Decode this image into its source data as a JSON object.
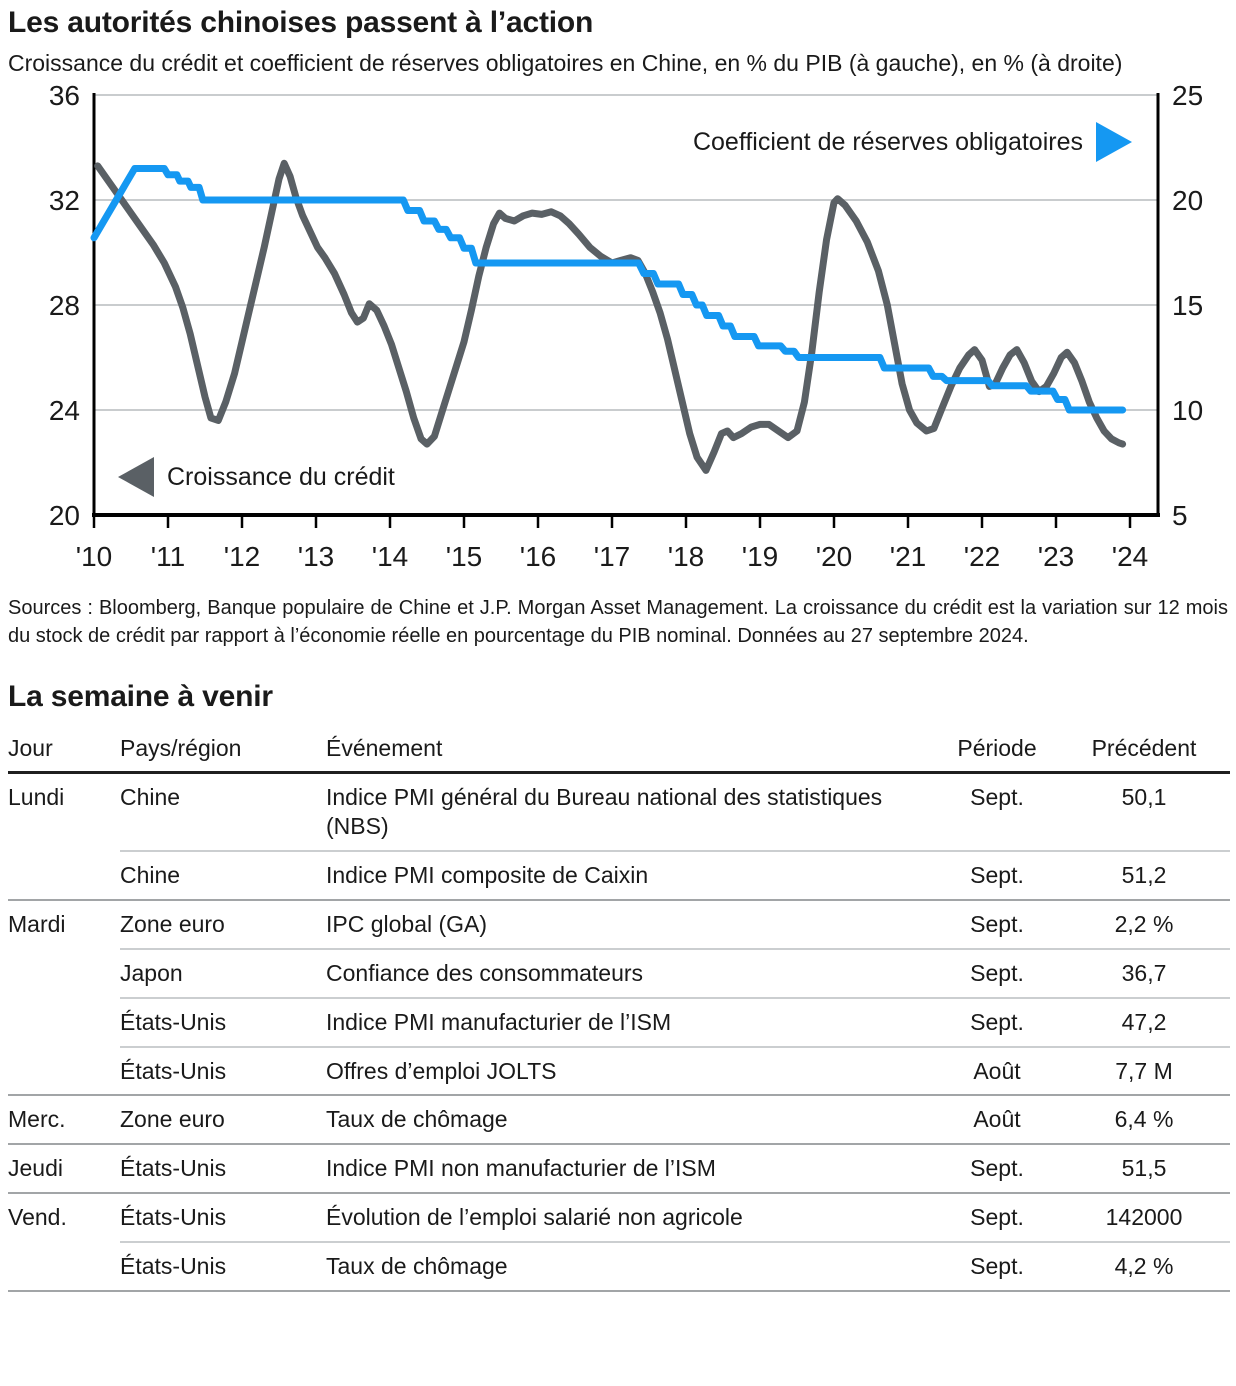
{
  "page": {
    "title": "Les autorités chinoises passent à l’action",
    "subtitle": "Croissance du crédit et coefficient de réserves obligatoires en Chine, en % du PIB (à gauche), en % (à droite)"
  },
  "chart_data": {
    "type": "line",
    "title": "Les autorités chinoises passent à l’action",
    "x_axis": {
      "tick_labels": [
        "'10",
        "'11",
        "'12",
        "'13",
        "'14",
        "'15",
        "'16",
        "'17",
        "'18",
        "'19",
        "'20",
        "'21",
        "'22",
        "'23",
        "'24"
      ],
      "start_year": 2010,
      "tick_step_years": 1
    },
    "left_axis": {
      "label": "% du PIB",
      "min": 20,
      "max": 36,
      "ticks": [
        36,
        32,
        28,
        24,
        20
      ]
    },
    "right_axis": {
      "label": "%",
      "min": 5,
      "max": 25,
      "ticks": [
        25,
        20,
        15,
        10,
        5
      ]
    },
    "grid": true,
    "legend_position": "inside",
    "series": [
      {
        "name": "Croissance du crédit",
        "axis": "left",
        "color": "#5A6065",
        "points": [
          [
            2010.05,
            33.3
          ],
          [
            2010.2,
            32.7
          ],
          [
            2010.35,
            32.1
          ],
          [
            2010.5,
            31.5
          ],
          [
            2010.65,
            30.9
          ],
          [
            2010.8,
            30.3
          ],
          [
            2010.95,
            29.6
          ],
          [
            2011.1,
            28.7
          ],
          [
            2011.2,
            27.9
          ],
          [
            2011.3,
            26.9
          ],
          [
            2011.4,
            25.7
          ],
          [
            2011.5,
            24.5
          ],
          [
            2011.58,
            23.7
          ],
          [
            2011.68,
            23.6
          ],
          [
            2011.78,
            24.3
          ],
          [
            2011.9,
            25.4
          ],
          [
            2012.0,
            26.6
          ],
          [
            2012.1,
            27.8
          ],
          [
            2012.2,
            29.0
          ],
          [
            2012.3,
            30.2
          ],
          [
            2012.4,
            31.5
          ],
          [
            2012.5,
            32.8
          ],
          [
            2012.57,
            33.4
          ],
          [
            2012.65,
            32.9
          ],
          [
            2012.73,
            32.1
          ],
          [
            2012.82,
            31.4
          ],
          [
            2012.92,
            30.8
          ],
          [
            2013.02,
            30.2
          ],
          [
            2013.12,
            29.8
          ],
          [
            2013.25,
            29.2
          ],
          [
            2013.38,
            28.4
          ],
          [
            2013.48,
            27.7
          ],
          [
            2013.56,
            27.35
          ],
          [
            2013.64,
            27.5
          ],
          [
            2013.72,
            28.05
          ],
          [
            2013.82,
            27.8
          ],
          [
            2013.92,
            27.2
          ],
          [
            2014.02,
            26.5
          ],
          [
            2014.12,
            25.6
          ],
          [
            2014.22,
            24.7
          ],
          [
            2014.32,
            23.7
          ],
          [
            2014.42,
            22.9
          ],
          [
            2014.5,
            22.7
          ],
          [
            2014.6,
            23.0
          ],
          [
            2014.7,
            23.9
          ],
          [
            2014.8,
            24.8
          ],
          [
            2014.9,
            25.7
          ],
          [
            2015.0,
            26.6
          ],
          [
            2015.1,
            27.8
          ],
          [
            2015.2,
            29.1
          ],
          [
            2015.3,
            30.2
          ],
          [
            2015.4,
            31.1
          ],
          [
            2015.48,
            31.5
          ],
          [
            2015.56,
            31.3
          ],
          [
            2015.68,
            31.2
          ],
          [
            2015.8,
            31.4
          ],
          [
            2015.92,
            31.5
          ],
          [
            2016.05,
            31.45
          ],
          [
            2016.18,
            31.55
          ],
          [
            2016.3,
            31.4
          ],
          [
            2016.42,
            31.1
          ],
          [
            2016.55,
            30.7
          ],
          [
            2016.7,
            30.2
          ],
          [
            2016.85,
            29.85
          ],
          [
            2017.0,
            29.6
          ],
          [
            2017.12,
            29.7
          ],
          [
            2017.25,
            29.8
          ],
          [
            2017.35,
            29.7
          ],
          [
            2017.45,
            29.2
          ],
          [
            2017.55,
            28.5
          ],
          [
            2017.65,
            27.7
          ],
          [
            2017.75,
            26.7
          ],
          [
            2017.85,
            25.5
          ],
          [
            2017.95,
            24.3
          ],
          [
            2018.05,
            23.1
          ],
          [
            2018.15,
            22.2
          ],
          [
            2018.27,
            21.7
          ],
          [
            2018.38,
            22.4
          ],
          [
            2018.48,
            23.1
          ],
          [
            2018.56,
            23.2
          ],
          [
            2018.64,
            22.95
          ],
          [
            2018.75,
            23.1
          ],
          [
            2018.88,
            23.35
          ],
          [
            2019.0,
            23.45
          ],
          [
            2019.12,
            23.45
          ],
          [
            2019.25,
            23.2
          ],
          [
            2019.38,
            22.95
          ],
          [
            2019.5,
            23.2
          ],
          [
            2019.6,
            24.3
          ],
          [
            2019.7,
            26.2
          ],
          [
            2019.8,
            28.5
          ],
          [
            2019.9,
            30.5
          ],
          [
            2020.0,
            31.9
          ],
          [
            2020.05,
            32.05
          ],
          [
            2020.15,
            31.8
          ],
          [
            2020.3,
            31.2
          ],
          [
            2020.45,
            30.4
          ],
          [
            2020.6,
            29.3
          ],
          [
            2020.72,
            28.0
          ],
          [
            2020.82,
            26.5
          ],
          [
            2020.92,
            25.0
          ],
          [
            2021.02,
            24.0
          ],
          [
            2021.12,
            23.5
          ],
          [
            2021.25,
            23.2
          ],
          [
            2021.35,
            23.3
          ],
          [
            2021.45,
            24.0
          ],
          [
            2021.58,
            24.9
          ],
          [
            2021.7,
            25.6
          ],
          [
            2021.82,
            26.1
          ],
          [
            2021.9,
            26.3
          ],
          [
            2022.0,
            25.9
          ],
          [
            2022.1,
            24.9
          ],
          [
            2022.18,
            25.0
          ],
          [
            2022.28,
            25.6
          ],
          [
            2022.38,
            26.1
          ],
          [
            2022.47,
            26.3
          ],
          [
            2022.57,
            25.8
          ],
          [
            2022.67,
            25.1
          ],
          [
            2022.77,
            24.7
          ],
          [
            2022.87,
            24.9
          ],
          [
            2022.97,
            25.4
          ],
          [
            2023.07,
            26.0
          ],
          [
            2023.15,
            26.2
          ],
          [
            2023.25,
            25.8
          ],
          [
            2023.35,
            25.1
          ],
          [
            2023.45,
            24.3
          ],
          [
            2023.55,
            23.7
          ],
          [
            2023.65,
            23.2
          ],
          [
            2023.75,
            22.9
          ],
          [
            2023.85,
            22.75
          ],
          [
            2023.9,
            22.7
          ]
        ]
      },
      {
        "name": "Coefficient de réserves obligatoires",
        "axis": "right",
        "color": "#1598F2",
        "points": [
          [
            2010.0,
            18.2
          ],
          [
            2010.55,
            21.5
          ],
          [
            2010.95,
            21.5
          ],
          [
            2011.0,
            21.2
          ],
          [
            2011.12,
            21.2
          ],
          [
            2011.16,
            20.9
          ],
          [
            2011.27,
            20.9
          ],
          [
            2011.31,
            20.6
          ],
          [
            2011.42,
            20.6
          ],
          [
            2011.47,
            20.0
          ],
          [
            2014.18,
            20.0
          ],
          [
            2014.24,
            19.5
          ],
          [
            2014.4,
            19.5
          ],
          [
            2014.46,
            19.0
          ],
          [
            2014.6,
            19.0
          ],
          [
            2014.66,
            18.6
          ],
          [
            2014.76,
            18.6
          ],
          [
            2014.82,
            18.2
          ],
          [
            2014.94,
            18.2
          ],
          [
            2015.0,
            17.7
          ],
          [
            2015.1,
            17.7
          ],
          [
            2015.16,
            17.0
          ],
          [
            2017.36,
            17.0
          ],
          [
            2017.43,
            16.5
          ],
          [
            2017.56,
            16.5
          ],
          [
            2017.62,
            16.0
          ],
          [
            2017.9,
            16.0
          ],
          [
            2017.96,
            15.5
          ],
          [
            2018.08,
            15.5
          ],
          [
            2018.14,
            15.0
          ],
          [
            2018.22,
            15.0
          ],
          [
            2018.28,
            14.5
          ],
          [
            2018.44,
            14.5
          ],
          [
            2018.5,
            14.0
          ],
          [
            2018.6,
            14.0
          ],
          [
            2018.66,
            13.5
          ],
          [
            2018.92,
            13.5
          ],
          [
            2018.98,
            13.05
          ],
          [
            2019.28,
            13.05
          ],
          [
            2019.34,
            12.8
          ],
          [
            2019.46,
            12.8
          ],
          [
            2019.52,
            12.5
          ],
          [
            2020.62,
            12.5
          ],
          [
            2020.68,
            12.0
          ],
          [
            2021.28,
            12.0
          ],
          [
            2021.34,
            11.6
          ],
          [
            2021.46,
            11.6
          ],
          [
            2021.52,
            11.4
          ],
          [
            2022.08,
            11.4
          ],
          [
            2022.14,
            11.15
          ],
          [
            2022.6,
            11.15
          ],
          [
            2022.66,
            10.9
          ],
          [
            2022.96,
            10.9
          ],
          [
            2023.02,
            10.5
          ],
          [
            2023.12,
            10.5
          ],
          [
            2023.18,
            10.0
          ],
          [
            2023.9,
            10.0
          ]
        ]
      }
    ]
  },
  "colors": {
    "credit_line": "#5A6065",
    "rrr_line": "#1598F2",
    "gridline": "#C9CCCE",
    "axis": "#000000"
  },
  "source_note": "Sources : Bloomberg, Banque populaire de Chine et J.P. Morgan Asset Management. La croissance du crédit est la variation sur 12 mois du stock de crédit par rapport à l’économie réelle en pourcentage du PIB nominal. Données au 27 septembre 2024.",
  "week_ahead": {
    "title": "La semaine à venir",
    "columns": [
      "Jour",
      "Pays/région",
      "Événement",
      "Période",
      "Précédent"
    ],
    "rows": [
      {
        "day": "Lundi",
        "region": "Chine",
        "event": "Indice PMI général du Bureau national des statistiques (NBS)",
        "period": "Sept.",
        "previous": "50,1"
      },
      {
        "day": "",
        "region": "Chine",
        "event": "Indice PMI composite de Caixin",
        "period": "Sept.",
        "previous": "51,2"
      },
      {
        "day": "Mardi",
        "region": "Zone euro",
        "event": "IPC global (GA)",
        "period": "Sept.",
        "previous": "2,2 %"
      },
      {
        "day": "",
        "region": "Japon",
        "event": "Confiance des consommateurs",
        "period": "Sept.",
        "previous": "36,7"
      },
      {
        "day": "",
        "region": "États-Unis",
        "event": "Indice PMI manufacturier de l’ISM",
        "period": "Sept.",
        "previous": "47,2"
      },
      {
        "day": "",
        "region": "États-Unis",
        "event": "Offres d’emploi JOLTS",
        "period": "Août",
        "previous": "7,7 M"
      },
      {
        "day": "Merc.",
        "region": "Zone euro",
        "event": "Taux de chômage",
        "period": "Août",
        "previous": "6,4 %"
      },
      {
        "day": "Jeudi",
        "region": "États-Unis",
        "event": "Indice PMI non manufacturier de l’ISM",
        "period": "Sept.",
        "previous": "51,5"
      },
      {
        "day": "Vend.",
        "region": "États-Unis",
        "event": "Évolution de l’emploi salarié non agricole",
        "period": "Sept.",
        "previous": "142000"
      },
      {
        "day": "",
        "region": "États-Unis",
        "event": "Taux de chômage",
        "period": "Sept.",
        "previous": "4,2 %"
      }
    ]
  }
}
